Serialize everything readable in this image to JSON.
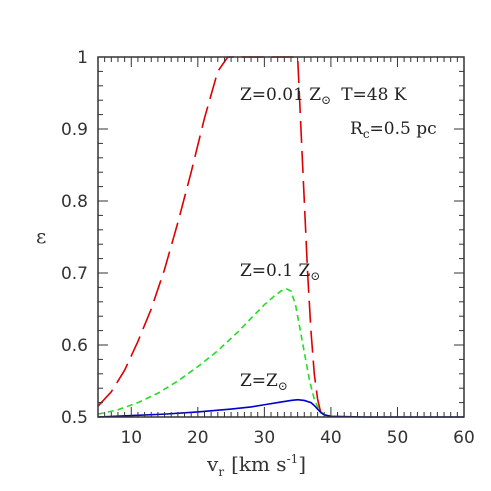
{
  "chart_data": {
    "type": "line",
    "xlabel": "v",
    "xlabel_sub": "r",
    "xlabel_units": "[km s",
    "xlabel_units_sup": "-1",
    "xlabel_units_close": "]",
    "ylabel": "ε",
    "xlim": [
      5,
      60
    ],
    "ylim": [
      0.5,
      1.0
    ],
    "xticks": [
      10,
      20,
      30,
      40,
      50,
      60
    ],
    "xtick_labels": [
      "10",
      "20",
      "30",
      "40",
      "50",
      "60"
    ],
    "yticks": [
      0.5,
      0.6,
      0.7,
      0.8,
      0.9,
      1.0
    ],
    "ytick_labels": [
      "0.5",
      "0.6",
      "0.7",
      "0.8",
      "0.9",
      "1"
    ],
    "grid": false,
    "annotations": {
      "top_line": "Z=0.01 Z",
      "top_line_sun": "⊙",
      "top_line_temp": "T=48 K",
      "rc_prefix": "R",
      "rc_sub": "c",
      "rc_suffix": "=0.5 pc",
      "mid_label": "Z=0.1 Z",
      "mid_label_sun": "⊙",
      "low_label": "Z=Z",
      "low_label_sun": "⊙"
    },
    "series": [
      {
        "color": "#dd0000",
        "dash": "long-dash",
        "x": [
          5,
          7,
          9,
          11,
          13,
          15,
          17,
          19,
          21,
          23,
          24.5,
          26,
          28,
          30,
          32,
          33,
          34,
          35,
          35.5,
          36,
          36.5,
          37,
          37.5,
          38,
          38.5
        ],
        "y": [
          0.515,
          0.535,
          0.565,
          0.605,
          0.65,
          0.705,
          0.77,
          0.84,
          0.915,
          0.98,
          1.0,
          1.0,
          1.0,
          1.0,
          1.0,
          1.0,
          1.0,
          1.0,
          0.9,
          0.8,
          0.7,
          0.62,
          0.56,
          0.525,
          0.505
        ]
      },
      {
        "color": "#22dd22",
        "dash": "short-dash",
        "x": [
          5,
          8,
          11,
          14,
          17,
          20,
          23,
          26,
          28,
          30,
          31.5,
          32.5,
          33.3,
          34,
          34.7,
          35.3,
          36,
          36.8,
          37.5,
          38.2,
          39
        ],
        "y": [
          0.504,
          0.51,
          0.52,
          0.533,
          0.55,
          0.57,
          0.592,
          0.618,
          0.637,
          0.656,
          0.668,
          0.675,
          0.678,
          0.675,
          0.655,
          0.625,
          0.59,
          0.55,
          0.525,
          0.51,
          0.503
        ]
      },
      {
        "color": "#0000cc",
        "dash": "solid",
        "x": [
          5,
          10,
          15,
          20,
          25,
          28,
          30,
          32,
          34,
          35,
          36,
          37,
          37.5,
          38,
          38.5,
          39,
          40,
          45,
          50,
          55,
          60
        ],
        "y": [
          0.5,
          0.502,
          0.504,
          0.507,
          0.511,
          0.514,
          0.517,
          0.52,
          0.523,
          0.524,
          0.523,
          0.52,
          0.516,
          0.511,
          0.506,
          0.503,
          0.501,
          0.5,
          0.5,
          0.5,
          0.5
        ]
      }
    ]
  }
}
